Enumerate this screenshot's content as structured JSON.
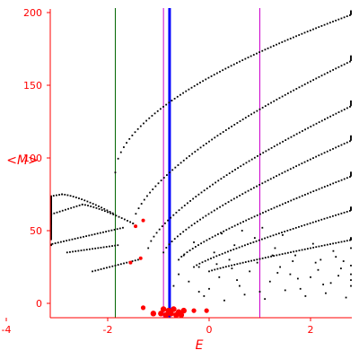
{
  "chart_data": {
    "type": "scatter",
    "xlabel": "E",
    "ylabel": "<M>",
    "xlim": [
      -5.7,
      3.1
    ],
    "ylim": [
      -10,
      202
    ],
    "x_ticks": [
      -4,
      -2,
      0,
      2
    ],
    "y_ticks": [
      0,
      50,
      100,
      150,
      200
    ],
    "grid": false,
    "colors": {
      "axis": "#ff0000",
      "points": "#000000",
      "red_points": "#ff0000",
      "line_green": "#006400",
      "line_magenta": "#cc00cc",
      "line_blue": "#0000ff"
    },
    "vertical_lines": [
      {
        "x": -1.85,
        "color": "#006400",
        "width": 1
      },
      {
        "x": -0.9,
        "color": "#cc00cc",
        "width": 1
      },
      {
        "x": -0.78,
        "color": "#0000ff",
        "width": 3
      },
      {
        "x": 1.0,
        "color": "#cc00cc",
        "width": 1
      }
    ],
    "branches": [
      {
        "x_from": -5.6,
        "x_to": -2.9,
        "y_from": 55,
        "y_to": 75,
        "curve": 0.8
      },
      {
        "x_from": -2.9,
        "x_to": -1.9,
        "y_from": 75,
        "y_to": 62,
        "curve": 1.4
      },
      {
        "x_from": -4.5,
        "x_to": -2.5,
        "y_from": 44,
        "y_to": 68,
        "curve": 0.9
      },
      {
        "x_from": -2.5,
        "x_to": -1.5,
        "y_from": 68,
        "y_to": 55,
        "curve": 1.3
      },
      {
        "x_from": -3.2,
        "x_to": -1.7,
        "y_from": 40,
        "y_to": 52,
        "curve": 1.0
      },
      {
        "x_from": -2.8,
        "x_to": -1.8,
        "y_from": 35,
        "y_to": 40,
        "curve": 1.0
      },
      {
        "x_from": -2.3,
        "x_to": -1.4,
        "y_from": 22,
        "y_to": 30,
        "curve": 1.0
      },
      {
        "x_from": -1.85,
        "x_to": 3.0,
        "y_from": 90,
        "y_to": 201,
        "curve": 0.55
      },
      {
        "x_from": -1.5,
        "x_to": 3.0,
        "y_from": 55,
        "y_to": 170,
        "curve": 0.65
      },
      {
        "x_from": -1.2,
        "x_to": 3.0,
        "y_from": 38,
        "y_to": 139,
        "curve": 0.7
      },
      {
        "x_from": -0.9,
        "x_to": 3.0,
        "y_from": 35,
        "y_to": 115,
        "curve": 0.75
      },
      {
        "x_from": -0.6,
        "x_to": 3.0,
        "y_from": 30,
        "y_to": 90,
        "curve": 0.8
      },
      {
        "x_from": -0.3,
        "x_to": 3.0,
        "y_from": 25,
        "y_to": 66,
        "curve": 0.85
      },
      {
        "x_from": 0.0,
        "x_to": 3.0,
        "y_from": 22,
        "y_to": 45,
        "curve": 0.9
      }
    ],
    "scatter_points": [
      [
        -0.6,
        20
      ],
      [
        -0.4,
        15
      ],
      [
        -0.2,
        25
      ],
      [
        0.0,
        10
      ],
      [
        0.2,
        18
      ],
      [
        0.4,
        30
      ],
      [
        0.6,
        12
      ],
      [
        0.8,
        22
      ],
      [
        1.0,
        8
      ],
      [
        1.2,
        15
      ],
      [
        1.4,
        25
      ],
      [
        1.6,
        20
      ],
      [
        1.8,
        10
      ],
      [
        2.0,
        18
      ],
      [
        2.2,
        30
      ],
      [
        2.4,
        14
      ],
      [
        2.6,
        24
      ],
      [
        2.8,
        12
      ],
      [
        3.0,
        20
      ],
      [
        0.1,
        35
      ],
      [
        0.5,
        40
      ],
      [
        0.9,
        45
      ],
      [
        1.3,
        38
      ],
      [
        1.7,
        33
      ],
      [
        2.1,
        28
      ],
      [
        2.5,
        32
      ],
      [
        2.9,
        26
      ],
      [
        -0.1,
        5
      ],
      [
        0.3,
        2
      ],
      [
        0.7,
        6
      ],
      [
        1.1,
        3
      ],
      [
        1.5,
        9
      ],
      [
        1.9,
        5
      ],
      [
        2.3,
        7
      ],
      [
        2.7,
        4
      ],
      [
        -0.5,
        33
      ],
      [
        0.25,
        48
      ],
      [
        0.65,
        50
      ],
      [
        1.05,
        52
      ],
      [
        -0.3,
        42
      ],
      [
        1.45,
        47
      ],
      [
        2.05,
        41
      ],
      [
        2.45,
        36
      ],
      [
        2.85,
        38
      ],
      [
        0.15,
        27
      ],
      [
        0.55,
        16
      ],
      [
        0.95,
        28
      ],
      [
        1.35,
        21
      ],
      [
        1.75,
        17
      ],
      [
        2.15,
        23
      ],
      [
        2.55,
        19
      ],
      [
        2.95,
        16
      ],
      [
        -0.7,
        12
      ],
      [
        -0.2,
        8
      ],
      [
        0.45,
        24
      ],
      [
        1.25,
        33
      ],
      [
        1.65,
        29
      ],
      [
        2.25,
        13
      ],
      [
        2.65,
        29
      ]
    ],
    "red_points": [
      {
        "x": -0.95,
        "y": -7,
        "r": 1.6
      },
      {
        "x": -0.9,
        "y": -4,
        "r": 1.6
      },
      {
        "x": -0.85,
        "y": -8,
        "r": 1.6
      },
      {
        "x": -0.8,
        "y": -5,
        "r": 1.6
      },
      {
        "x": -0.75,
        "y": -7,
        "r": 1.6
      },
      {
        "x": -0.7,
        "y": -4,
        "r": 1.6
      },
      {
        "x": -0.65,
        "y": -8,
        "r": 1.6
      },
      {
        "x": -0.6,
        "y": -6,
        "r": 1.6
      },
      {
        "x": -0.55,
        "y": -8,
        "r": 1.6
      },
      {
        "x": -1.1,
        "y": -7,
        "r": 1.6
      },
      {
        "x": -0.5,
        "y": -5,
        "r": 1.6
      },
      {
        "x": -1.3,
        "y": -3,
        "r": 1.3
      },
      {
        "x": -0.3,
        "y": -5,
        "r": 1.3
      },
      {
        "x": -0.05,
        "y": -5,
        "r": 1.3
      },
      {
        "x": -1.45,
        "y": 53,
        "r": 1.0
      },
      {
        "x": -1.3,
        "y": 57,
        "r": 1.0
      },
      {
        "x": -1.55,
        "y": 28,
        "r": 1.0
      },
      {
        "x": -1.35,
        "y": 31,
        "r": 1.0
      }
    ]
  }
}
